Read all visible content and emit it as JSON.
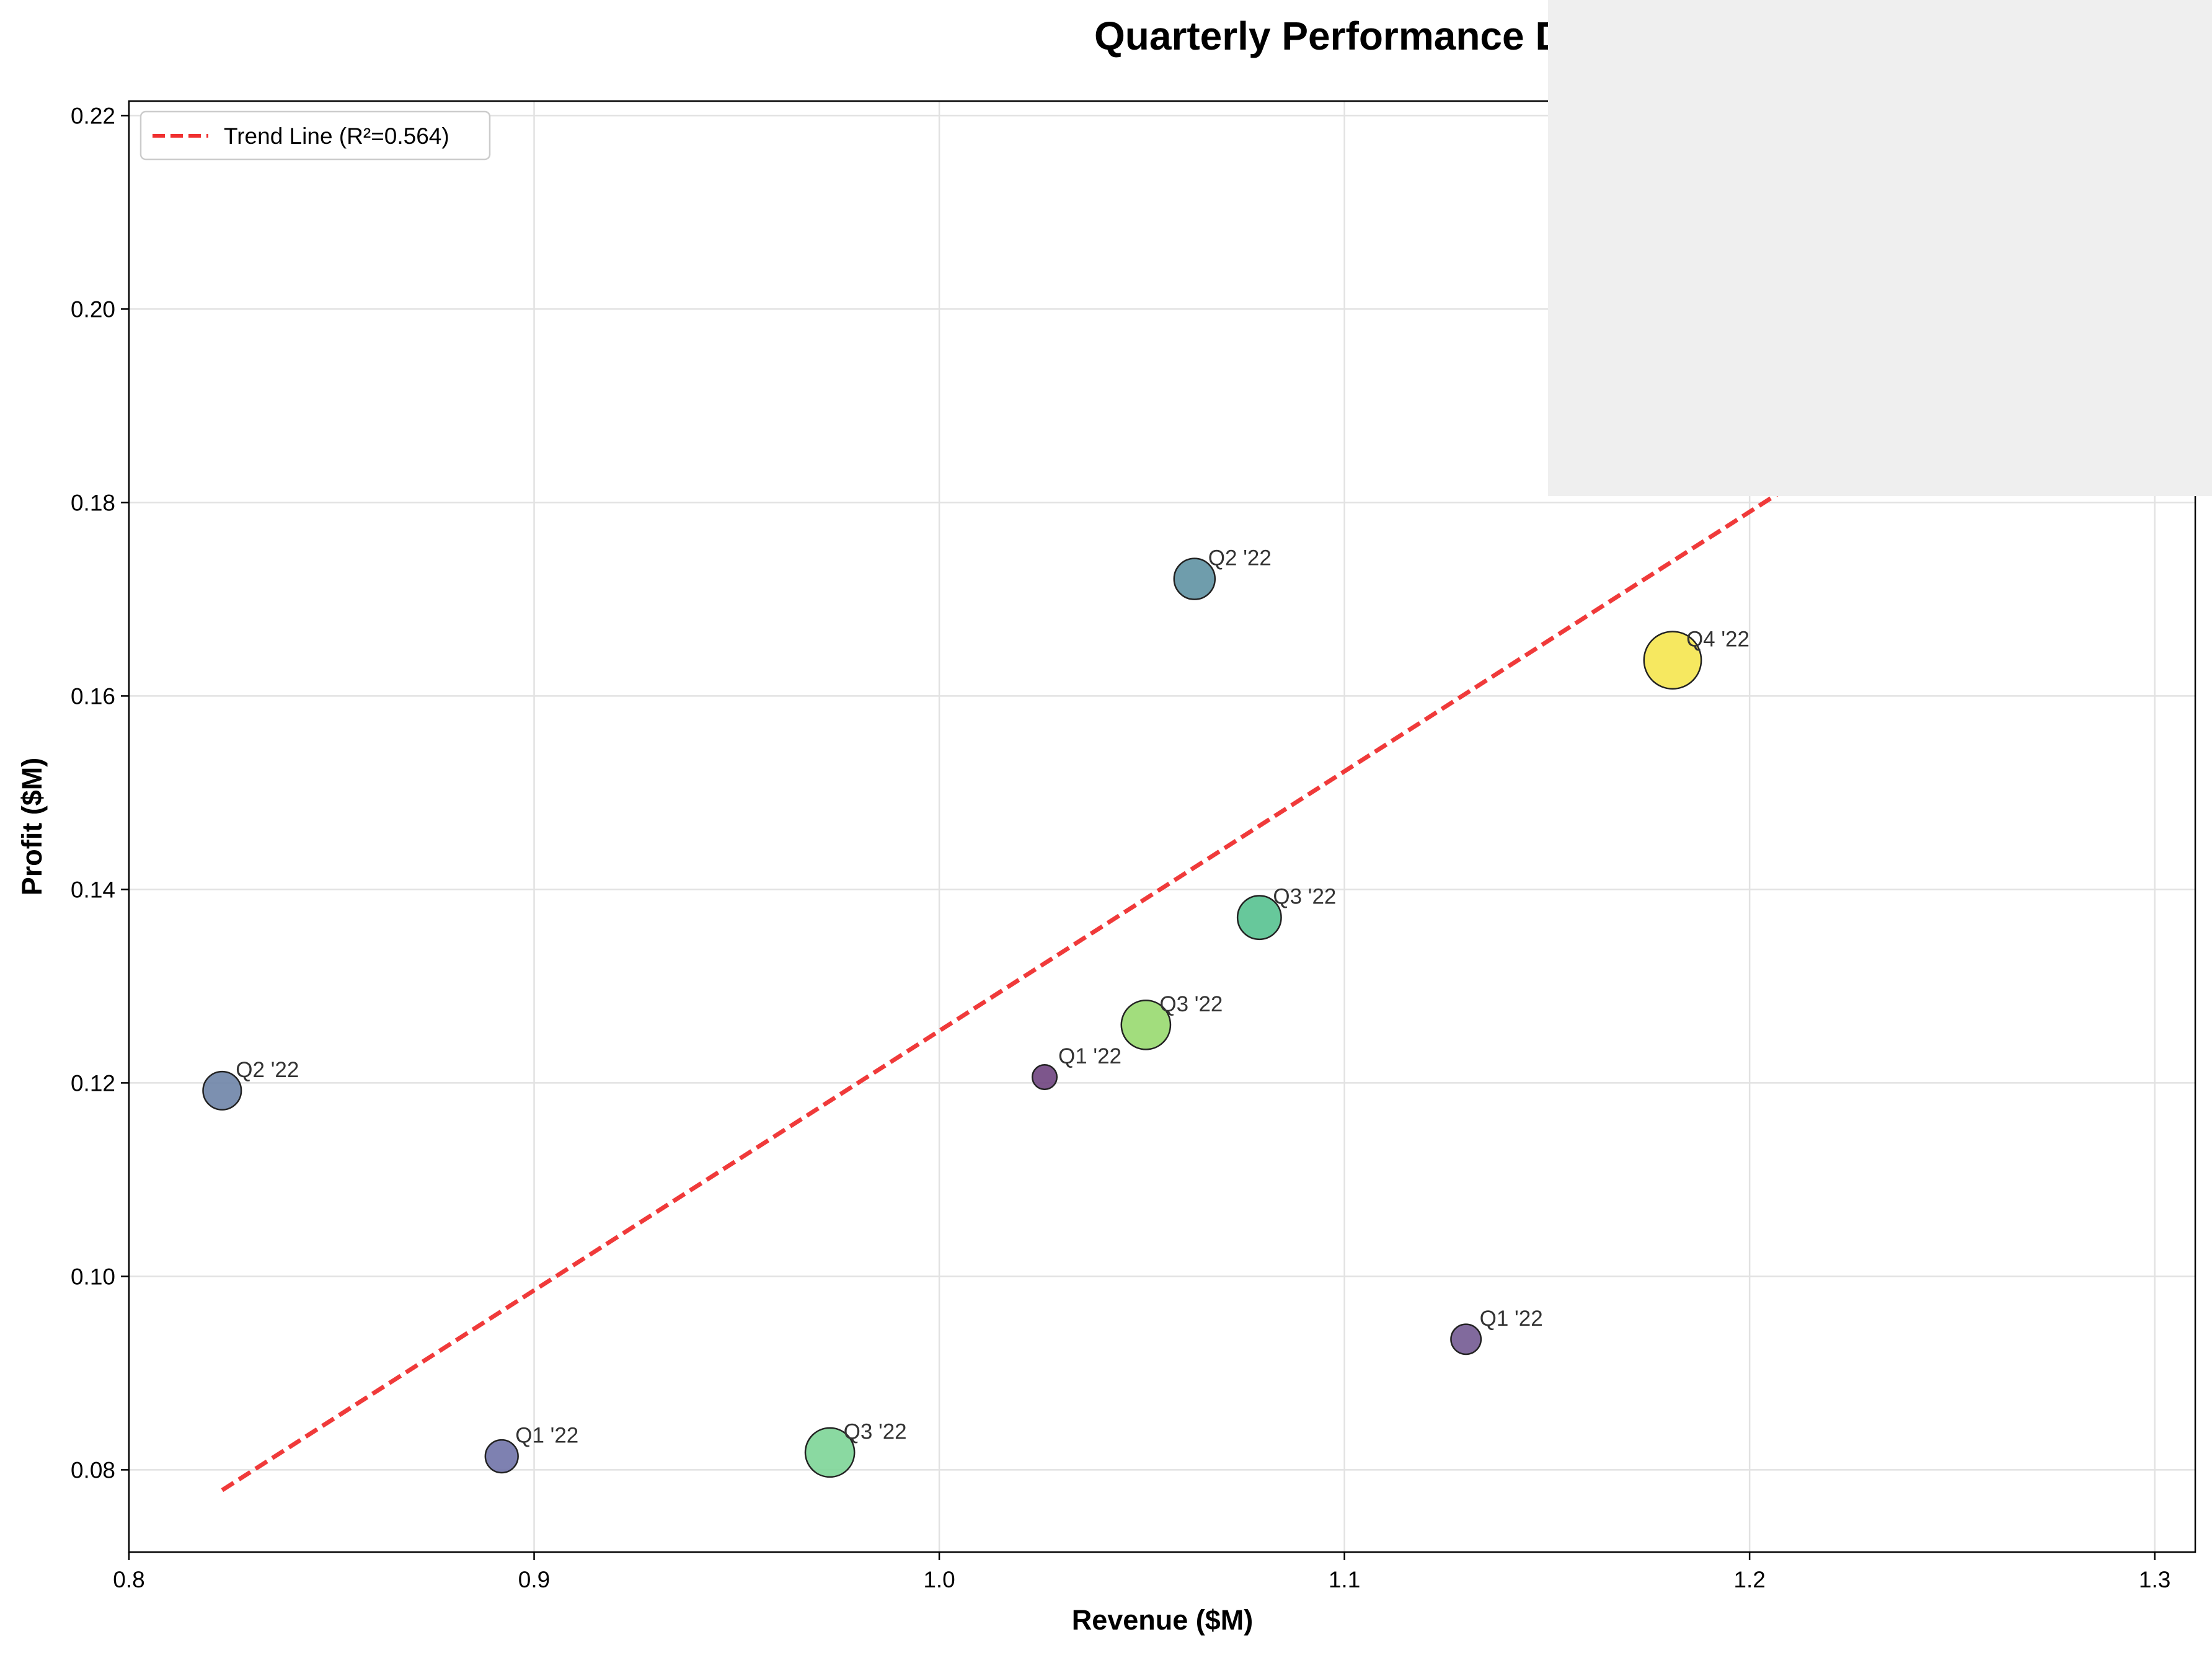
{
  "chart_data": {
    "type": "scatter",
    "title": "Quarterly Performance Dashboard - (Business A",
    "xlabel": "Revenue ($M)",
    "ylabel": "Profit ($M)",
    "xlim": [
      0.8,
      1.31
    ],
    "ylim": [
      0.0715,
      0.2215
    ],
    "xticks": [
      "0.8",
      "0.9",
      "1.0",
      "1.1",
      "1.2",
      "1.3"
    ],
    "yticks": [
      "0.08",
      "0.10",
      "0.12",
      "0.14",
      "0.16",
      "0.18",
      "0.20",
      "0.22"
    ],
    "grid": true,
    "legend": {
      "position": "top-left",
      "entries": [
        "Trend Line (R²=0.564)"
      ]
    },
    "points": [
      {
        "label": "Q2 '22",
        "x": 0.823,
        "y": 0.1192,
        "size": 14,
        "color": "#6a81a5"
      },
      {
        "label": "Q1 '22",
        "x": 0.892,
        "y": 0.0814,
        "size": 12,
        "color": "#6c6fa6"
      },
      {
        "label": "Q3 '22",
        "x": 0.973,
        "y": 0.0818,
        "size": 18,
        "color": "#7ad494"
      },
      {
        "label": "Q1 '22",
        "x": 1.026,
        "y": 0.1206,
        "size": 9,
        "color": "#6b3f7c"
      },
      {
        "label": "Q3 '22",
        "x": 1.051,
        "y": 0.126,
        "size": 18,
        "color": "#95d86b"
      },
      {
        "label": "Q2 '22",
        "x": 1.063,
        "y": 0.1721,
        "size": 15,
        "color": "#5b8fa0"
      },
      {
        "label": "Q3 '22",
        "x": 1.079,
        "y": 0.1371,
        "size": 16,
        "color": "#52c08d"
      },
      {
        "label": "Q1 '22",
        "x": 1.13,
        "y": 0.0935,
        "size": 11,
        "color": "#70558f"
      },
      {
        "label": "Q4 '22",
        "x": 1.181,
        "y": 0.1637,
        "size": 21,
        "color": "#f5e54a"
      }
    ],
    "trend_line": {
      "x": [
        0.823,
        1.305
      ],
      "y": [
        0.0779,
        0.2072
      ],
      "color": "#f03030",
      "style": "dashed"
    }
  }
}
